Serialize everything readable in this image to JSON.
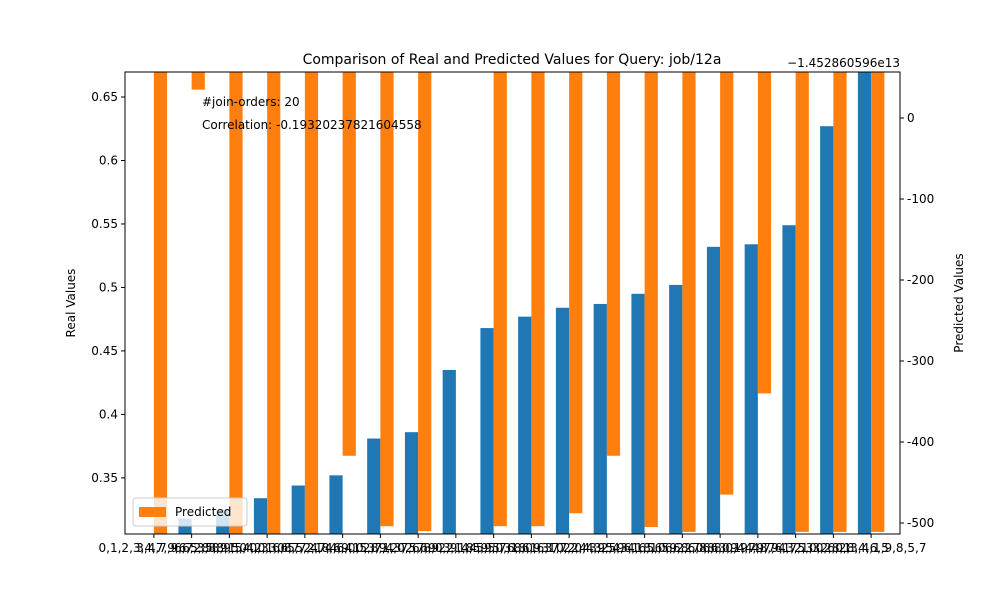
{
  "chart_data": {
    "type": "bar",
    "title": "Comparison of Real and Predicted Values for Query: job/12a",
    "ylabel": "Real Values",
    "y2label": "Predicted Values",
    "y2_offset_label": "−1.452860596e13",
    "annotations": [
      "#join-orders: 20",
      "Correlation: -0.19320237821604558"
    ],
    "categories": [
      "0,1,2,3,4,7,9,6,5,8",
      "3,4,7,9,6,2,5,8,1,0",
      "6,7,3,8,9,5,4,2,1,0",
      "8,9,5,4,0,3,6,7,2,1",
      "0,3,6,8,5,2,7,4,9,1",
      "5,7,4,8,6,4,0,3,9,2",
      "4,6,0,5,8,1,3,2,7,9",
      "2,7,4,0,5,6,9,3,1,8",
      "7,6,8,0,2,1,4,9,5,3",
      "2,9,4,5,9,0,6,8,1,3",
      "5,5,7,1,6,9,3,0,2,4",
      "8,0,6,1,7,2,4,3,5,9",
      "7,2,0,4,9,5,3,1,8,6",
      "3,2,4,6,1,5,0,9,8,7",
      "4,6,1,5,6,2,0,8,3,9",
      "6,2,6,8,6,0,1,4,9,7",
      "6,8,0,4,7,8,9,1,2,3",
      "9,4,7,6,3,5,0,2,8,1",
      "4,7,1,3,2,0,8,4,6,5",
      "0,6,2,3,4,1,9,8,5,7"
    ],
    "series": [
      {
        "name": "Real",
        "color": "#1f77b4",
        "values": [
          0.3,
          0.318,
          0.325,
          0.334,
          0.344,
          0.352,
          0.381,
          0.386,
          0.435,
          0.468,
          0.477,
          0.484,
          0.487,
          0.495,
          0.502,
          0.532,
          0.534,
          0.549,
          0.627,
          0.68
        ]
      },
      {
        "name": "Predicted",
        "color": "#ff7f0e",
        "axis": "y2",
        "values": [
          -520,
          35,
          -520,
          -520,
          -520,
          -417,
          -504,
          -510,
          60,
          -504,
          -504,
          -488,
          -417,
          -505,
          -511,
          -465,
          -340,
          -511,
          -511,
          -511
        ]
      }
    ],
    "ylim": [
      0.3058,
      0.6697
    ],
    "yticks": [
      0.35,
      0.4,
      0.45,
      0.5,
      0.55,
      0.6,
      0.65
    ],
    "y2lim": [
      -513.6,
      56.8
    ],
    "y2ticks": [
      0,
      -100,
      -200,
      -300,
      -400,
      -500
    ],
    "legend": "lower left"
  }
}
